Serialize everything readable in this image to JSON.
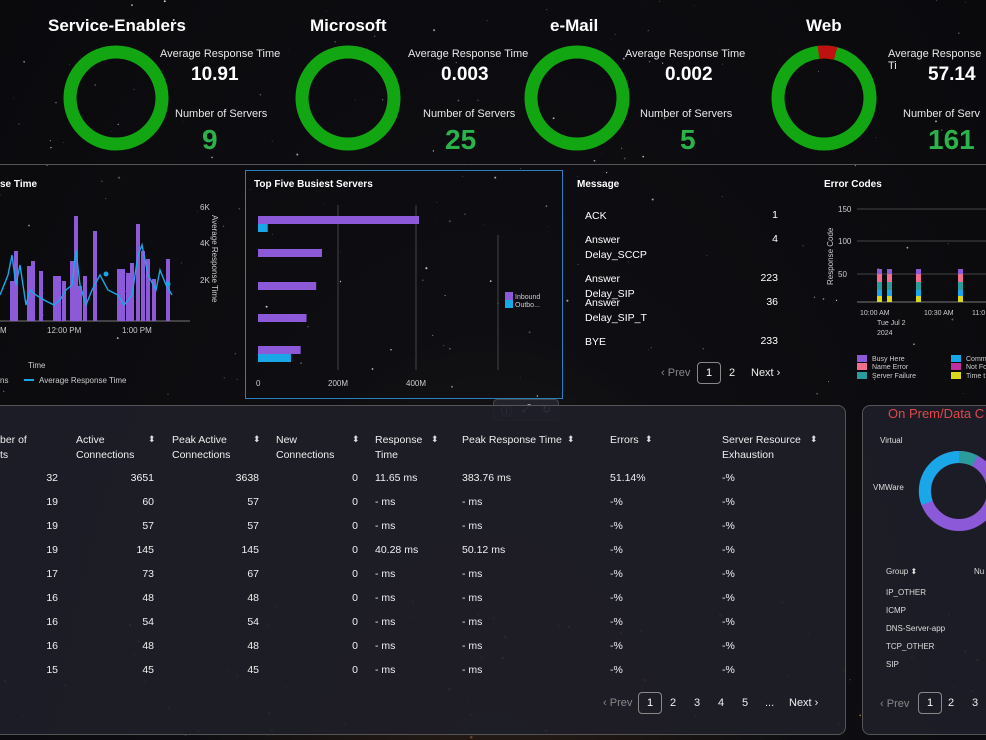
{
  "kpis": [
    {
      "title": "Service-Enablers",
      "avg_label": "Average Response Time",
      "avg": "10.91",
      "servers_label": "Number of Servers",
      "servers": "9",
      "error_fraction": 0
    },
    {
      "title": "Microsoft",
      "avg_label": "Average Response Time",
      "avg": "0.003",
      "servers_label": "Number of Servers",
      "servers": "25",
      "error_fraction": 0
    },
    {
      "title": "e-Mail",
      "avg_label": "Average Response Time",
      "avg": "0.002",
      "servers_label": "Number of Servers",
      "servers": "5",
      "error_fraction": 0
    },
    {
      "title": "Web",
      "avg_label": "Average Response Ti",
      "avg": "57.14",
      "servers_label": "Number of Serv",
      "servers": "161",
      "error_fraction": 0.06
    }
  ],
  "colors": {
    "ok": "#12a612",
    "err": "#c01010",
    "purple": "#8c5ad8",
    "cyan": "#1aa7e8",
    "teal": "#2a9c9c",
    "value_green": "#2bb24a"
  },
  "response_panel": {
    "title": "se Time",
    "y_ticks": [
      "6K",
      "4K",
      "2K"
    ],
    "y_label": "Average Response Time",
    "x_ticks": [
      "M",
      "12:00 PM",
      "1:00 PM"
    ],
    "x_label": "Time",
    "legend_prefix": "ns",
    "legend_line": "Average Response Time"
  },
  "busiest_panel": {
    "title": "Top Five Busiest Servers",
    "x_ticks": [
      "0",
      "200M",
      "400M"
    ],
    "legend": [
      "Inbound",
      "Outbo..."
    ],
    "chart_data": {
      "type": "bar",
      "orientation": "horizontal",
      "categories": [
        "",
        "",
        "",
        "",
        ""
      ],
      "series": [
        {
          "name": "Inbound",
          "values": [
            415,
            165,
            150,
            125,
            110
          ]
        },
        {
          "name": "Outbo...",
          "values": [
            25,
            0,
            0,
            0,
            85
          ]
        }
      ],
      "xlim": [
        0,
        500
      ]
    }
  },
  "message_panel": {
    "title": "Message",
    "rows": [
      {
        "name": "ACK",
        "value": "1"
      },
      {
        "name": "Answer Delay_SCCP",
        "value": "4"
      },
      {
        "name": "Answer Delay_SIP",
        "value": "223"
      },
      {
        "name": "Answer Delay_SIP_T",
        "value": "36"
      },
      {
        "name": "BYE",
        "value": "233"
      }
    ],
    "prev": "Prev",
    "page": "1",
    "page2": "2",
    "next": "Next"
  },
  "errors_panel": {
    "title": "Error Codes",
    "y_ticks": [
      "150",
      "100",
      "50"
    ],
    "y_label": "Response Code",
    "x_ticks": [
      "10:00 AM",
      "10:30 AM",
      "11:0"
    ],
    "x_sub": [
      "Tue Jul 2",
      "2024"
    ],
    "legend": [
      "Busy Here",
      "Name Error",
      "Server Failure",
      "Comm",
      "Not Fo",
      "Time t"
    ]
  },
  "table": {
    "headers": [
      "ber of\nts",
      "Active\nConnections",
      "Peak Active\nConnections",
      "New\nConnections",
      "Response\nTime",
      "Peak Response Time",
      "Errors",
      "Server Resource\nExhaustion"
    ],
    "rows": [
      [
        "32",
        "3651",
        "3638",
        "0",
        "11.65 ms",
        "383.76 ms",
        "51.14%",
        "-%"
      ],
      [
        "19",
        "60",
        "57",
        "0",
        "- ms",
        "- ms",
        "-%",
        "-%"
      ],
      [
        "19",
        "57",
        "57",
        "0",
        "- ms",
        "- ms",
        "-%",
        "-%"
      ],
      [
        "19",
        "145",
        "145",
        "0",
        "40.28 ms",
        "50.12 ms",
        "-%",
        "-%"
      ],
      [
        "17",
        "73",
        "67",
        "0",
        "- ms",
        "- ms",
        "-%",
        "-%"
      ],
      [
        "16",
        "48",
        "48",
        "0",
        "- ms",
        "- ms",
        "-%",
        "-%"
      ],
      [
        "16",
        "54",
        "54",
        "0",
        "- ms",
        "- ms",
        "-%",
        "-%"
      ],
      [
        "16",
        "48",
        "48",
        "0",
        "- ms",
        "- ms",
        "-%",
        "-%"
      ],
      [
        "15",
        "45",
        "45",
        "0",
        "- ms",
        "- ms",
        "-%",
        "-%"
      ]
    ],
    "pager": {
      "prev": "Prev",
      "pages": [
        "1",
        "2",
        "3",
        "4",
        "5",
        "..."
      ],
      "next": "Next"
    }
  },
  "side_panel": {
    "title": "On Prem/Data C",
    "labels": [
      "Virtual",
      "VMWare"
    ],
    "group_header": "Group",
    "col2": "Nu",
    "groups": [
      "IP_OTHER",
      "ICMP",
      "DNS-Server-app",
      "TCP_OTHER",
      "SIP"
    ],
    "pager": {
      "prev": "Prev",
      "pages": [
        "1",
        "2",
        "3"
      ]
    }
  }
}
